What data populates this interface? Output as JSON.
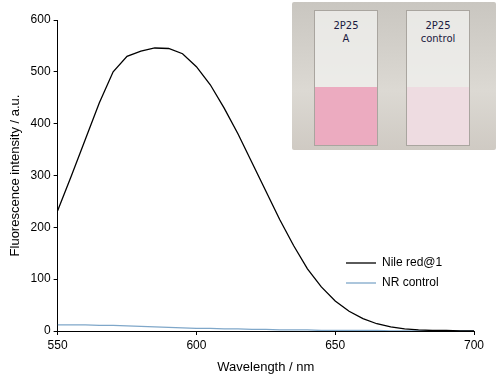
{
  "chart_data": {
    "type": "line",
    "x_label": "Wavelength / nm",
    "y_label": "Fluorescence intensity / a.u.",
    "x": [
      550,
      555,
      560,
      565,
      570,
      575,
      580,
      585,
      590,
      595,
      600,
      605,
      610,
      615,
      620,
      625,
      630,
      635,
      640,
      645,
      650,
      655,
      660,
      665,
      670,
      675,
      680,
      685,
      690,
      695,
      700
    ],
    "series": [
      {
        "name": "Nile red@1",
        "color": "#000000",
        "line_style": "solid",
        "marker": "none",
        "values": [
          232,
          300,
          370,
          440,
          500,
          530,
          540,
          546,
          545,
          535,
          510,
          475,
          430,
          380,
          325,
          270,
          215,
          165,
          120,
          85,
          58,
          38,
          24,
          14,
          8,
          4,
          2,
          1,
          1,
          0,
          0
        ]
      },
      {
        "name": "NR control",
        "color": "#7fa7c9",
        "line_style": "solid",
        "marker": "none",
        "values": [
          12,
          12,
          12,
          11,
          11,
          10,
          9,
          8,
          7,
          6,
          5,
          5,
          4,
          4,
          3,
          3,
          2,
          2,
          2,
          1,
          1,
          1,
          1,
          1,
          0,
          0,
          0,
          0,
          0,
          0,
          0
        ]
      }
    ],
    "xlim": [
      550,
      700
    ],
    "xticks": [
      550,
      600,
      650,
      700
    ],
    "ylim": [
      0,
      600
    ],
    "yticks": [
      0,
      100,
      200,
      300,
      400,
      500,
      600
    ],
    "grid": false,
    "legend": "right",
    "annotations": [
      "2P25 A",
      "2P25 control"
    ]
  }
}
